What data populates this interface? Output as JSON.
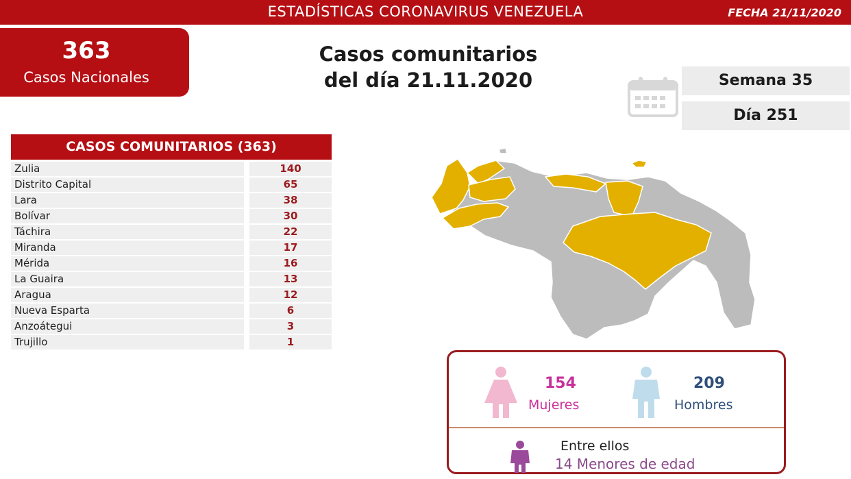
{
  "header": {
    "title": "ESTADÍSTICAS CORONAVIRUS VENEZUELA",
    "date": "FECHA 21/11/2020"
  },
  "national": {
    "number": "363",
    "label": "Casos Nacionales"
  },
  "main_title": {
    "line1": "Casos comunitarios",
    "line2": "del día 21.11.2020"
  },
  "calendar": {
    "week": "Semana 35",
    "day": "Día 251",
    "icon": "calendar-icon"
  },
  "table": {
    "header": "CASOS COMUNITARIOS (363)",
    "rows": [
      {
        "state": "Zulia",
        "cases": "140"
      },
      {
        "state": "Distrito Capital",
        "cases": "65"
      },
      {
        "state": "Lara",
        "cases": "38"
      },
      {
        "state": "Bolívar",
        "cases": "30"
      },
      {
        "state": "Táchira",
        "cases": "22"
      },
      {
        "state": "Miranda",
        "cases": "17"
      },
      {
        "state": "Mérida",
        "cases": "16"
      },
      {
        "state": "La Guaira",
        "cases": "13"
      },
      {
        "state": "Aragua",
        "cases": "12"
      },
      {
        "state": "Nueva Esparta",
        "cases": "6"
      },
      {
        "state": "Anzoátegui",
        "cases": "3"
      },
      {
        "state": "Trujillo",
        "cases": "1"
      }
    ]
  },
  "map": {
    "highlight_color": "#e3b000",
    "base_color": "#bcbcbc"
  },
  "gender": {
    "women_count": "154",
    "women_label": "Mujeres",
    "women_color": "#f2b8cf",
    "men_count": "209",
    "men_label": "Hombres",
    "men_color": "#bfdcec",
    "minors_intro": "Entre ellos",
    "minors_text": "14 Menores de edad",
    "child_color": "#9b4a9b"
  },
  "colors": {
    "brand_red": "#b50f14",
    "value_red": "#9b1b1e"
  }
}
